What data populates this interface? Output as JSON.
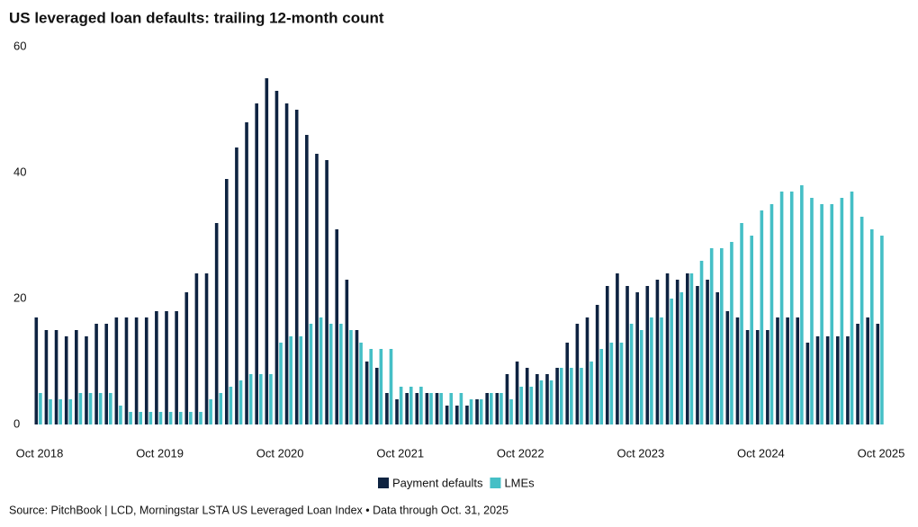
{
  "chart_data": {
    "type": "bar",
    "title": "US leveraged loan defaults: trailing 12-month count",
    "source": "Source: PitchBook | LCD, Morningstar LSTA US Leveraged Loan Index • Data through Oct. 31, 2025",
    "categories": [
      "Oct 2018",
      null,
      null,
      null,
      null,
      null,
      null,
      null,
      null,
      null,
      null,
      null,
      "Oct 2019",
      null,
      null,
      null,
      null,
      null,
      null,
      null,
      null,
      null,
      null,
      null,
      "Oct 2020",
      null,
      null,
      null,
      null,
      null,
      null,
      null,
      null,
      null,
      null,
      null,
      "Oct 2021",
      null,
      null,
      null,
      null,
      null,
      null,
      null,
      null,
      null,
      null,
      null,
      "Oct 2022",
      null,
      null,
      null,
      null,
      null,
      null,
      null,
      null,
      null,
      null,
      null,
      "Oct 2023",
      null,
      null,
      null,
      null,
      null,
      null,
      null,
      null,
      null,
      null,
      null,
      "Oct 2024",
      null,
      null,
      null,
      null,
      null,
      null,
      null,
      null,
      null,
      null,
      null,
      "Oct 2025"
    ],
    "series": [
      {
        "name": "Payment defaults",
        "color": "#0e2341",
        "values": [
          17,
          15,
          15,
          14,
          15,
          14,
          16,
          16,
          17,
          17,
          17,
          17,
          18,
          18,
          18,
          21,
          24,
          24,
          32,
          39,
          44,
          48,
          51,
          55,
          53,
          51,
          50,
          46,
          43,
          42,
          31,
          23,
          15,
          10,
          9,
          5,
          4,
          5,
          5,
          5,
          5,
          3,
          3,
          3,
          4,
          5,
          5,
          8,
          10,
          9,
          8,
          8,
          9,
          13,
          16,
          17,
          19,
          22,
          24,
          22,
          21,
          22,
          23,
          24,
          23,
          24,
          22,
          23,
          21,
          18,
          17,
          15,
          15,
          15,
          17,
          17,
          17,
          13,
          14,
          14,
          14,
          14,
          16,
          17,
          16
        ]
      },
      {
        "name": "LMEs",
        "color": "#45bfc6",
        "values": [
          5,
          4,
          4,
          4,
          5,
          5,
          5,
          5,
          3,
          2,
          2,
          2,
          2,
          2,
          2,
          2,
          2,
          4,
          5,
          6,
          7,
          8,
          8,
          8,
          13,
          14,
          14,
          16,
          17,
          16,
          16,
          15,
          13,
          12,
          12,
          12,
          6,
          6,
          6,
          5,
          5,
          5,
          5,
          4,
          4,
          5,
          5,
          4,
          6,
          6,
          7,
          7,
          9,
          9,
          9,
          10,
          12,
          13,
          13,
          16,
          15,
          17,
          17,
          20,
          21,
          24,
          26,
          28,
          28,
          29,
          32,
          30,
          34,
          35,
          37,
          37,
          38,
          36,
          35,
          35,
          36,
          37,
          33,
          31,
          30
        ]
      }
    ],
    "ylim": [
      0,
      60
    ],
    "yticks": [
      0,
      20,
      40,
      60
    ],
    "grid": false
  }
}
